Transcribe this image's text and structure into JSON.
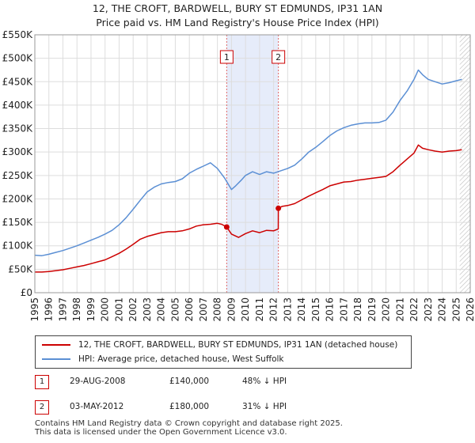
{
  "title": {
    "line1": "12, THE CROFT, BARDWELL, BURY ST EDMUNDS, IP31 1AN",
    "line2": "Price paid vs. HM Land Registry's House Price Index (HPI)"
  },
  "chart_data": {
    "type": "line",
    "xlim": [
      1995,
      2026
    ],
    "ylim": [
      0,
      550000
    ],
    "x_ticks": [
      "1995",
      "1996",
      "1997",
      "1998",
      "1999",
      "2000",
      "2001",
      "2002",
      "2003",
      "2004",
      "2005",
      "2006",
      "2007",
      "2008",
      "2009",
      "2010",
      "2011",
      "2012",
      "2013",
      "2014",
      "2015",
      "2016",
      "2017",
      "2018",
      "2019",
      "2020",
      "2021",
      "2022",
      "2023",
      "2024",
      "2025",
      "2026"
    ],
    "y_ticks": [
      {
        "value": 0,
        "label": "£0"
      },
      {
        "value": 50000,
        "label": "£50K"
      },
      {
        "value": 100000,
        "label": "£100K"
      },
      {
        "value": 150000,
        "label": "£150K"
      },
      {
        "value": 200000,
        "label": "£200K"
      },
      {
        "value": 250000,
        "label": "£250K"
      },
      {
        "value": 300000,
        "label": "£300K"
      },
      {
        "value": 350000,
        "label": "£350K"
      },
      {
        "value": 400000,
        "label": "£400K"
      },
      {
        "value": 450000,
        "label": "£450K"
      },
      {
        "value": 500000,
        "label": "£500K"
      },
      {
        "value": 550000,
        "label": "£550K"
      }
    ],
    "grid": true,
    "shaded_region": {
      "from": 2008.66,
      "to": 2012.34
    },
    "hatched_from": 2025.25,
    "series": [
      {
        "name": "HPI",
        "color": "#5b8fd4",
        "x": [
          1995,
          1995.5,
          1996,
          1996.5,
          1997,
          1997.5,
          1998,
          1998.5,
          1999,
          1999.5,
          2000,
          2000.5,
          2001,
          2001.5,
          2002,
          2002.5,
          2003,
          2003.5,
          2004,
          2004.5,
          2005,
          2005.5,
          2006,
          2006.5,
          2007,
          2007.5,
          2008,
          2008.5,
          2009,
          2009.3,
          2009.7,
          2010,
          2010.5,
          2011,
          2011.5,
          2012,
          2012.5,
          2013,
          2013.5,
          2014,
          2014.5,
          2015,
          2015.5,
          2016,
          2016.5,
          2017,
          2017.5,
          2018,
          2018.5,
          2019,
          2019.5,
          2020,
          2020.5,
          2021,
          2021.5,
          2022,
          2022.3,
          2022.6,
          2023,
          2023.5,
          2024,
          2024.5,
          2025,
          2025.4
        ],
        "values": [
          80000,
          79000,
          82000,
          86000,
          90000,
          95000,
          100000,
          106000,
          112000,
          118000,
          125000,
          133000,
          145000,
          160000,
          178000,
          197000,
          215000,
          225000,
          232000,
          235000,
          237000,
          243000,
          255000,
          263000,
          270000,
          277000,
          265000,
          245000,
          220000,
          228000,
          240000,
          250000,
          258000,
          252000,
          258000,
          255000,
          260000,
          265000,
          272000,
          285000,
          300000,
          310000,
          322000,
          335000,
          345000,
          352000,
          357000,
          360000,
          362000,
          362000,
          363000,
          368000,
          385000,
          410000,
          430000,
          455000,
          475000,
          465000,
          455000,
          450000,
          445000,
          448000,
          452000,
          455000
        ]
      },
      {
        "name": "Price paid",
        "color": "#cc0000",
        "x": [
          1995,
          1995.5,
          1996,
          1996.5,
          1997,
          1997.5,
          1998,
          1998.5,
          1999,
          1999.5,
          2000,
          2000.5,
          2001,
          2001.5,
          2002,
          2002.5,
          2003,
          2003.5,
          2004,
          2004.5,
          2005,
          2005.5,
          2006,
          2006.5,
          2007,
          2007.5,
          2008,
          2008.3,
          2008.66,
          2009,
          2009.5,
          2010,
          2010.5,
          2011,
          2011.5,
          2012,
          2012.33,
          2012.34,
          2012.6,
          2013,
          2013.5,
          2014,
          2014.5,
          2015,
          2015.5,
          2016,
          2016.5,
          2017,
          2017.5,
          2018,
          2018.5,
          2019,
          2019.5,
          2020,
          2020.5,
          2021,
          2021.5,
          2022,
          2022.3,
          2022.6,
          2023,
          2023.5,
          2024,
          2024.5,
          2025,
          2025.4
        ],
        "values": [
          44000,
          44000,
          45000,
          47000,
          49000,
          52000,
          55000,
          58000,
          62000,
          66000,
          70000,
          77000,
          84000,
          93000,
          103000,
          114000,
          120000,
          124000,
          128000,
          130000,
          130000,
          132000,
          136000,
          142000,
          145000,
          146000,
          148000,
          146000,
          140000,
          125000,
          118000,
          126000,
          132000,
          128000,
          133000,
          132000,
          136000,
          180000,
          184000,
          186000,
          190000,
          198000,
          206000,
          213000,
          220000,
          228000,
          232000,
          236000,
          237000,
          240000,
          242000,
          244000,
          246000,
          248000,
          258000,
          272000,
          285000,
          298000,
          315000,
          308000,
          305000,
          302000,
          300000,
          302000,
          303000,
          305000
        ]
      }
    ],
    "markers": [
      {
        "label": "1",
        "x": 2008.66,
        "y": 140000
      },
      {
        "label": "2",
        "x": 2012.34,
        "y": 180000
      }
    ]
  },
  "legend": {
    "items": [
      {
        "label": "12, THE CROFT, BARDWELL, BURY ST EDMUNDS, IP31 1AN (detached house)",
        "color": "#cc0000"
      },
      {
        "label": "HPI: Average price, detached house, West Suffolk",
        "color": "#5b8fd4"
      }
    ]
  },
  "transactions": [
    {
      "num": "1",
      "date": "29-AUG-2008",
      "price": "£140,000",
      "hpi": "48% ↓ HPI"
    },
    {
      "num": "2",
      "date": "03-MAY-2012",
      "price": "£180,000",
      "hpi": "31% ↓ HPI"
    }
  ],
  "footer": {
    "line1": "Contains HM Land Registry data © Crown copyright and database right 2025.",
    "line2": "This data is licensed under the Open Government Licence v3.0."
  }
}
